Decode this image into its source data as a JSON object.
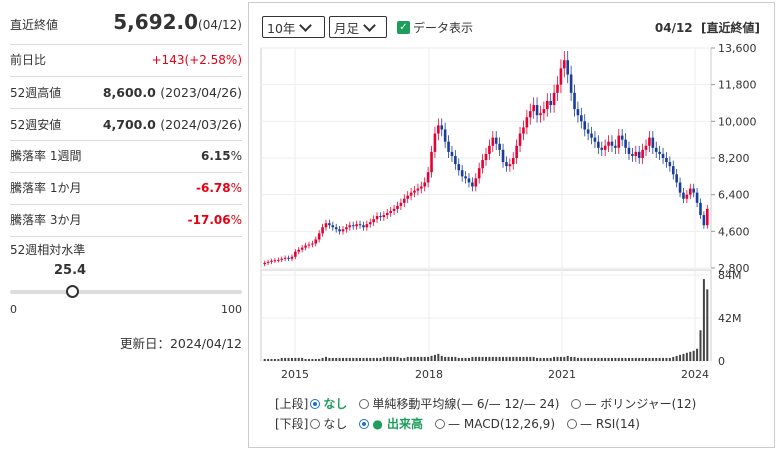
{
  "summary": {
    "close_label": "直近終値",
    "close_value": "5,692.0",
    "close_date": "(04/12)",
    "change_label": "前日比",
    "change_value": "+143(+2.58%)",
    "high52_label": "52週高値",
    "high52_value": "8,600.0",
    "high52_date": "(2023/04/26)",
    "low52_label": "52週安値",
    "low52_value": "4,700.0",
    "low52_date": "(2024/03/26)",
    "ch1w_label": "騰落率 1週間",
    "ch1w_value": "6.15",
    "ch1m_label": "騰落率 1か月",
    "ch1m_value": "-6.78",
    "ch3m_label": "騰落率 3か月",
    "ch3m_value": "-17.06",
    "pct_sign": "%",
    "level_label": "52週相対水準",
    "level_value": "25.4",
    "level_fraction": 0.254,
    "level_min": "0",
    "level_max": "100",
    "updated": "更新日：2024/04/12"
  },
  "controls": {
    "period": "10年",
    "interval": "月足",
    "show_data": "データ表示",
    "header_date": "04/12",
    "header_label": "[直近終値]"
  },
  "options": {
    "upper_label": "[上段]",
    "lower_label": "[下段]",
    "none": "なし",
    "sma": "単純移動平均線(— 6/— 12/— 24)",
    "bollinger": "— ボリンジャー(12)",
    "volume": "● 出来高",
    "macd": "— MACD(12,26,9)",
    "rsi": "— RSI(14)"
  },
  "chart_data": {
    "type": "candlestick",
    "price_ticks": [
      "13,600",
      "11,800",
      "10,000",
      "8,200",
      "6,400",
      "4,600",
      "2,800"
    ],
    "price_ylim": [
      2800,
      13600
    ],
    "volume_ticks": [
      "84M",
      "42M",
      "0"
    ],
    "volume_ylim": [
      0,
      84
    ],
    "x_ticks": [
      "2015",
      "2018",
      "2021",
      "2024"
    ],
    "monthly_close": [
      3050,
      3100,
      3150,
      3180,
      3200,
      3250,
      3300,
      3250,
      3350,
      3600,
      3700,
      3800,
      3900,
      3950,
      4000,
      4200,
      4500,
      4800,
      5000,
      4900,
      4800,
      4700,
      4600,
      4700,
      4800,
      4900,
      4850,
      4950,
      4900,
      4800,
      4950,
      5050,
      5200,
      5350,
      5300,
      5400,
      5500,
      5600,
      5700,
      5850,
      6000,
      6200,
      6350,
      6500,
      6600,
      6700,
      6800,
      7000,
      7500,
      8500,
      9400,
      9800,
      9600,
      9000,
      8500,
      8300,
      7900,
      7600,
      7300,
      7200,
      7000,
      6800,
      7200,
      7700,
      8100,
      8400,
      8800,
      9200,
      8900,
      8600,
      8000,
      7800,
      7900,
      8200,
      8800,
      9400,
      9700,
      10200,
      10500,
      10800,
      10300,
      10400,
      10600,
      11000,
      10800,
      11400,
      11800,
      12600,
      13000,
      12300,
      11400,
      10600,
      10300,
      10000,
      9600,
      9400,
      9200,
      9000,
      8700,
      8600,
      8800,
      9000,
      8800,
      8700,
      9300,
      9100,
      8700,
      8400,
      8300,
      8500,
      8200,
      8600,
      8800,
      9200,
      8700,
      8500,
      8400,
      8200,
      8000,
      7800,
      7400,
      7000,
      6500,
      6200,
      6400,
      6700,
      6500,
      6000,
      5400,
      4900,
      5700
    ],
    "monthly_volume": [
      2,
      2,
      2,
      2,
      2,
      3,
      3,
      3,
      3,
      3,
      3,
      3,
      2,
      2,
      2,
      2,
      2,
      3,
      4,
      3,
      3,
      3,
      3,
      3,
      3,
      3,
      3,
      3,
      3,
      3,
      3,
      3,
      3,
      3,
      3,
      4,
      4,
      4,
      4,
      4,
      3,
      3,
      4,
      4,
      4,
      4,
      4,
      4,
      4,
      5,
      6,
      7,
      5,
      4,
      4,
      4,
      4,
      3,
      3,
      3,
      3,
      4,
      4,
      4,
      4,
      4,
      4,
      4,
      4,
      4,
      4,
      4,
      4,
      4,
      4,
      4,
      4,
      4,
      4,
      4,
      3,
      3,
      3,
      3,
      3,
      4,
      4,
      4,
      4,
      5,
      4,
      4,
      3,
      3,
      3,
      3,
      3,
      3,
      3,
      3,
      3,
      3,
      3,
      3,
      3,
      3,
      3,
      3,
      3,
      3,
      3,
      3,
      3,
      3,
      3,
      3,
      3,
      3,
      3,
      3,
      4,
      5,
      6,
      7,
      8,
      9,
      10,
      12,
      30,
      80,
      70
    ]
  }
}
